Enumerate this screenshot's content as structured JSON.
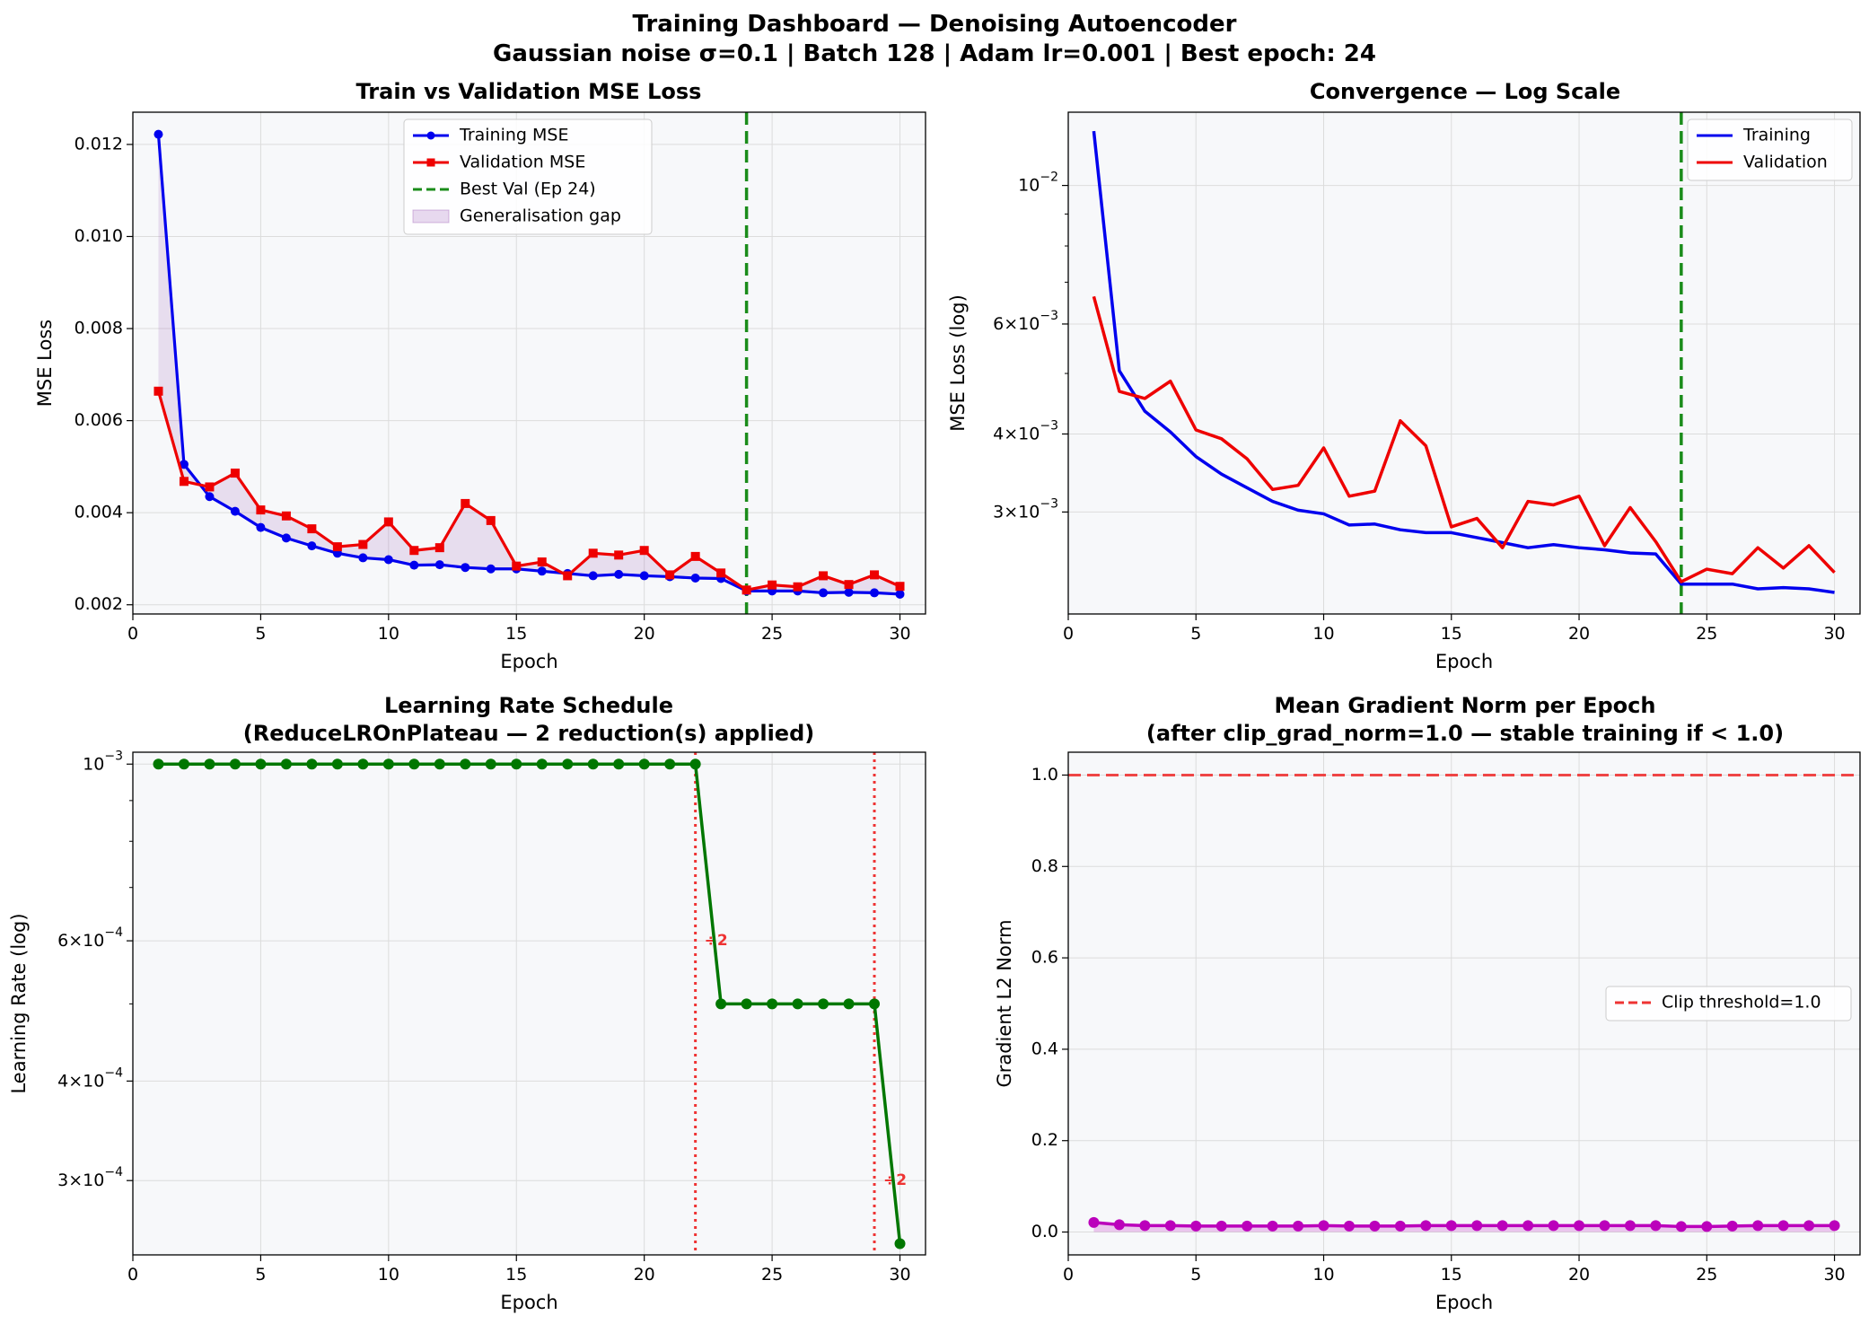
{
  "figure": {
    "title": "Training Dashboard — Denoising Autoencoder",
    "subtitle": "Gaussian noise σ=0.1  |  Batch 128  |  Adam lr=0.001  |  Best epoch: 24"
  },
  "colors": {
    "train": "#0000ee",
    "val": "#ee0000",
    "best": "#1a8c1a",
    "gap": "#8e44ad",
    "lr": "#007700",
    "grad": "#bb00bb",
    "clip": "#ee3333",
    "axes_bg": "#f7f8fa"
  },
  "chart_data": [
    {
      "type": "line",
      "title": "Train vs Validation MSE Loss",
      "xlabel": "Epoch",
      "ylabel": "MSE Loss",
      "xlim": [
        0,
        31
      ],
      "ylim": [
        0.0018,
        0.0127
      ],
      "x_ticks": [
        0,
        5,
        10,
        15,
        20,
        25,
        30
      ],
      "y_ticks": [
        0.002,
        0.004,
        0.006,
        0.008,
        0.01,
        0.012
      ],
      "y_tick_labels": [
        "0.002",
        "0.004",
        "0.006",
        "0.008",
        "0.010",
        "0.012"
      ],
      "grid": true,
      "legend_position": "upper-center",
      "x": [
        1,
        2,
        3,
        4,
        5,
        6,
        7,
        8,
        9,
        10,
        11,
        12,
        13,
        14,
        15,
        16,
        17,
        18,
        19,
        20,
        21,
        22,
        23,
        24,
        25,
        26,
        27,
        28,
        29,
        30
      ],
      "series": [
        {
          "name": "Training MSE",
          "marker": "circle",
          "values": [
            0.01222,
            0.00505,
            0.00435,
            0.00403,
            0.00368,
            0.00345,
            0.00328,
            0.00312,
            0.00302,
            0.00298,
            0.00286,
            0.00287,
            0.00281,
            0.00278,
            0.00278,
            0.00273,
            0.00268,
            0.00263,
            0.00266,
            0.00263,
            0.00261,
            0.00258,
            0.00257,
            0.0023,
            0.0023,
            0.0023,
            0.00226,
            0.00227,
            0.00226,
            0.00223
          ]
        },
        {
          "name": "Validation MSE",
          "marker": "square",
          "values": [
            0.00664,
            0.00468,
            0.00456,
            0.00486,
            0.00406,
            0.00393,
            0.00365,
            0.00326,
            0.00331,
            0.0038,
            0.00318,
            0.00324,
            0.0042,
            0.00383,
            0.00284,
            0.00293,
            0.00263,
            0.00312,
            0.00308,
            0.00318,
            0.00265,
            0.00305,
            0.00269,
            0.00232,
            0.00243,
            0.00239,
            0.00263,
            0.00244,
            0.00265,
            0.0024
          ]
        }
      ],
      "best_epoch_line": {
        "name": "Best Val (Ep 24)",
        "x": 24
      },
      "fill_label": "Generalisation gap"
    },
    {
      "type": "line",
      "title": "Convergence — Log Scale",
      "xlabel": "Epoch",
      "ylabel": "MSE Loss (log)",
      "yscale": "log",
      "xlim": [
        0,
        31
      ],
      "ylim": [
        0.00206,
        0.0131
      ],
      "x_ticks": [
        0,
        5,
        10,
        15,
        20,
        25,
        30
      ],
      "y_ticks": [
        0.003,
        0.004,
        0.006,
        0.01
      ],
      "y_tick_labels": [
        {
          "base": "3×10",
          "exp": "−3"
        },
        {
          "base": "4×10",
          "exp": "−3"
        },
        {
          "base": "6×10",
          "exp": "−3"
        },
        {
          "base": "10",
          "exp": "−2"
        }
      ],
      "y_minor_ticks": [
        0.005,
        0.007,
        0.008,
        0.009
      ],
      "grid": true,
      "legend_position": "upper-right",
      "x": [
        1,
        2,
        3,
        4,
        5,
        6,
        7,
        8,
        9,
        10,
        11,
        12,
        13,
        14,
        15,
        16,
        17,
        18,
        19,
        20,
        21,
        22,
        23,
        24,
        25,
        26,
        27,
        28,
        29,
        30
      ],
      "series": [
        {
          "name": "Training",
          "values": [
            0.01222,
            0.00505,
            0.00435,
            0.00403,
            0.00368,
            0.00345,
            0.00328,
            0.00312,
            0.00302,
            0.00298,
            0.00286,
            0.00287,
            0.00281,
            0.00278,
            0.00278,
            0.00273,
            0.00268,
            0.00263,
            0.00266,
            0.00263,
            0.00261,
            0.00258,
            0.00257,
            0.0023,
            0.0023,
            0.0023,
            0.00226,
            0.00227,
            0.00226,
            0.00223
          ]
        },
        {
          "name": "Validation",
          "values": [
            0.00664,
            0.00468,
            0.00456,
            0.00486,
            0.00406,
            0.00393,
            0.00365,
            0.00326,
            0.00331,
            0.0038,
            0.00318,
            0.00324,
            0.0042,
            0.00383,
            0.00284,
            0.00293,
            0.00263,
            0.00312,
            0.00308,
            0.00318,
            0.00265,
            0.00305,
            0.00269,
            0.00232,
            0.00243,
            0.00239,
            0.00263,
            0.00244,
            0.00265,
            0.0024
          ]
        }
      ],
      "best_epoch_line": {
        "x": 24
      }
    },
    {
      "type": "line",
      "title": "Learning Rate Schedule",
      "subtitle": "(ReduceLROnPlateau — 2 reduction(s) applied)",
      "xlabel": "Epoch",
      "ylabel": "Learning Rate (log)",
      "yscale": "log",
      "xlim": [
        0,
        31
      ],
      "ylim": [
        0.000242,
        0.001035
      ],
      "x_ticks": [
        0,
        5,
        10,
        15,
        20,
        25,
        30
      ],
      "y_ticks": [
        0.0003,
        0.0004,
        0.0006,
        0.001
      ],
      "y_tick_labels": [
        {
          "base": "3×10",
          "exp": "−4"
        },
        {
          "base": "4×10",
          "exp": "−4"
        },
        {
          "base": "6×10",
          "exp": "−4"
        },
        {
          "base": "10",
          "exp": "−3"
        }
      ],
      "y_minor_ticks": [
        0.0005,
        0.0007,
        0.0008,
        0.0009
      ],
      "grid": true,
      "x": [
        1,
        2,
        3,
        4,
        5,
        6,
        7,
        8,
        9,
        10,
        11,
        12,
        13,
        14,
        15,
        16,
        17,
        18,
        19,
        20,
        21,
        22,
        23,
        24,
        25,
        26,
        27,
        28,
        29,
        30
      ],
      "series": [
        {
          "name": "Learning rate",
          "marker": "circle",
          "values": [
            0.001,
            0.001,
            0.001,
            0.001,
            0.001,
            0.001,
            0.001,
            0.001,
            0.001,
            0.001,
            0.001,
            0.001,
            0.001,
            0.001,
            0.001,
            0.001,
            0.001,
            0.001,
            0.001,
            0.001,
            0.001,
            0.001,
            0.0005,
            0.0005,
            0.0005,
            0.0005,
            0.0005,
            0.0005,
            0.0005,
            0.00025
          ]
        }
      ],
      "reductions": [
        {
          "x": 22,
          "label": "÷2",
          "label_y": 0.0006
        },
        {
          "x": 29,
          "label": "÷2",
          "label_y": 0.0003
        }
      ]
    },
    {
      "type": "line",
      "title": "Mean Gradient Norm per Epoch",
      "subtitle": "(after clip_grad_norm=1.0 — stable training if < 1.0)",
      "xlabel": "Epoch",
      "ylabel": "Gradient L2 Norm",
      "xlim": [
        0,
        31
      ],
      "ylim": [
        -0.05,
        1.05
      ],
      "x_ticks": [
        0,
        5,
        10,
        15,
        20,
        25,
        30
      ],
      "y_ticks": [
        0.0,
        0.2,
        0.4,
        0.6,
        0.8,
        1.0
      ],
      "y_tick_labels": [
        "0.0",
        "0.2",
        "0.4",
        "0.6",
        "0.8",
        "1.0"
      ],
      "grid": true,
      "legend_position": "center-right",
      "x": [
        1,
        2,
        3,
        4,
        5,
        6,
        7,
        8,
        9,
        10,
        11,
        12,
        13,
        14,
        15,
        16,
        17,
        18,
        19,
        20,
        21,
        22,
        23,
        24,
        25,
        26,
        27,
        28,
        29,
        30
      ],
      "series": [
        {
          "name": "Gradient norm",
          "marker": "circle",
          "values": [
            0.021,
            0.016,
            0.014,
            0.014,
            0.013,
            0.013,
            0.013,
            0.013,
            0.013,
            0.014,
            0.013,
            0.013,
            0.013,
            0.014,
            0.014,
            0.014,
            0.014,
            0.014,
            0.014,
            0.014,
            0.014,
            0.014,
            0.014,
            0.012,
            0.012,
            0.013,
            0.014,
            0.014,
            0.014,
            0.014
          ]
        }
      ],
      "threshold_line": {
        "name": "Clip threshold=1.0",
        "y": 1.0
      }
    }
  ]
}
